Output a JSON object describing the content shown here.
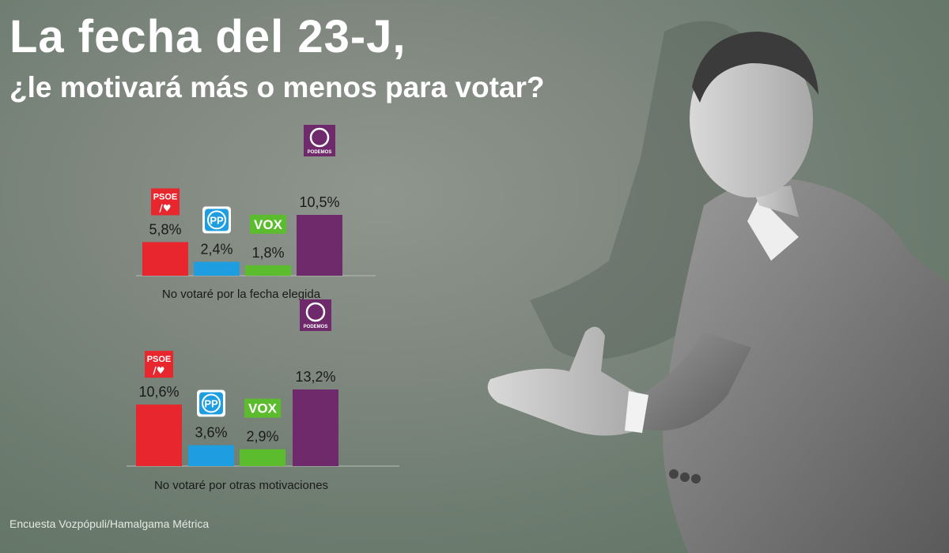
{
  "header": {
    "title": "La fecha del 23-J,",
    "subtitle": "¿le motivará más o menos para votar?"
  },
  "source": "Encuesta Vozpópuli/Hamalgama Métrica",
  "logos": {
    "psoe": {
      "name": "psoe-logo",
      "text": "PSOE"
    },
    "pp": {
      "name": "pp-logo",
      "text": "PP"
    },
    "vox": {
      "name": "vox-logo",
      "text": "VOX"
    },
    "podemos": {
      "name": "podemos-logo",
      "text": "PODEMOS"
    }
  },
  "colors": {
    "psoe": "#e8262d",
    "pp": "#1e9ee0",
    "vox": "#5bbd2e",
    "podemos": "#6e2a6a"
  },
  "chart_data": [
    {
      "type": "bar",
      "categories": [
        "PSOE",
        "PP",
        "VOX",
        "PODEMOS"
      ],
      "values": [
        5.8,
        2.4,
        1.8,
        10.5
      ],
      "value_labels": [
        "5,8%",
        "2,4%",
        "1,8%",
        "10,5%"
      ],
      "xlabel": "No votaré por la fecha elegida",
      "ylabel": "",
      "ylim": [
        0,
        10.5
      ],
      "grid": false
    },
    {
      "type": "bar",
      "categories": [
        "PSOE",
        "PP",
        "VOX",
        "PODEMOS"
      ],
      "values": [
        10.6,
        3.6,
        2.9,
        13.2
      ],
      "value_labels": [
        "10,6%",
        "3,6%",
        "2,9%",
        "13,2%"
      ],
      "xlabel": "No votaré por otras motivaciones",
      "ylabel": "",
      "ylim": [
        0,
        13.2
      ],
      "grid": false
    }
  ]
}
